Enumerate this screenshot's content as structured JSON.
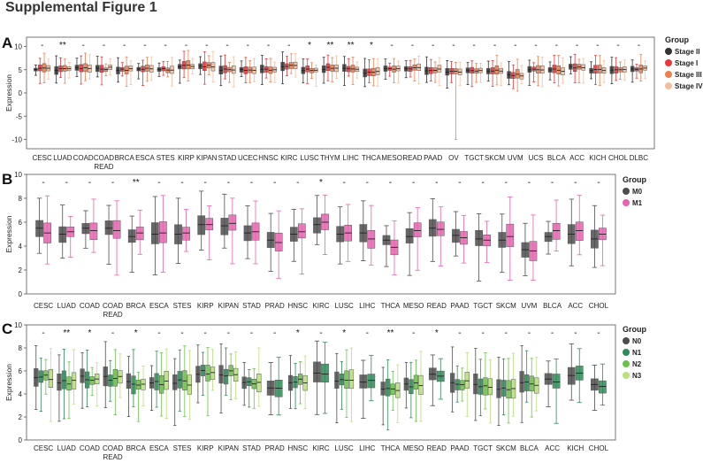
{
  "figure_title": "Supplemental Figure 1",
  "chart_data": [
    {
      "panel": "A",
      "type": "box",
      "ylabel": "Expression",
      "ylim": [
        -12,
        12
      ],
      "yticks": [
        -10,
        -5,
        0,
        5,
        10
      ],
      "legend_title": "Group",
      "legend_placement": "right",
      "series": [
        {
          "name": "Stage II",
          "color": "#333333"
        },
        {
          "name": "Stage I",
          "color": "#e8363b"
        },
        {
          "name": "Stage III",
          "color": "#f07f4d"
        },
        {
          "name": "Stage IV",
          "color": "#f5bf9c"
        }
      ],
      "categories": [
        "CESC",
        "LUAD",
        "COAD",
        "COAD READ",
        "BRCA",
        "ESCA",
        "STES",
        "KIRP",
        "KIPAN",
        "STAD",
        "UCEC",
        "HNSC",
        "KIRC",
        "LUSC",
        "THYM",
        "LIHC",
        "THCA",
        "MESO",
        "READ",
        "PAAD",
        "OV",
        "TGCT",
        "SKCM",
        "UVM",
        "UCS",
        "BLCA",
        "ACC",
        "KICH",
        "CHOL",
        "DLBC"
      ],
      "significance": [
        "",
        "**",
        "",
        "",
        "",
        "",
        "",
        "",
        "",
        "",
        "",
        "",
        "",
        "*",
        "**",
        "**",
        "*",
        "",
        "",
        "",
        "",
        "",
        "",
        "",
        "",
        "",
        "",
        "",
        "",
        ""
      ],
      "median": [
        5.3,
        5.0,
        5.3,
        5.3,
        5.0,
        5.1,
        5.1,
        5.8,
        5.8,
        5.1,
        5.1,
        5.0,
        5.8,
        5.0,
        5.3,
        5.1,
        4.5,
        5.0,
        5.3,
        5.0,
        4.5,
        4.6,
        4.7,
        3.9,
        5.0,
        4.9,
        5.6,
        5.0,
        5.0,
        5.2
      ]
    },
    {
      "panel": "B",
      "type": "box",
      "ylabel": "Expression",
      "ylim": [
        0,
        10
      ],
      "yticks": [
        0,
        2,
        4,
        6,
        8,
        10
      ],
      "legend_title": "Group",
      "legend_placement": "right",
      "series": [
        {
          "name": "M0",
          "color": "#4d4d4d"
        },
        {
          "name": "M1",
          "color": "#e763b0"
        }
      ],
      "categories": [
        "CESC",
        "LUAD",
        "COAD",
        "COAD READ",
        "BRCA",
        "ESCA",
        "STES",
        "KIRP",
        "KIPAN",
        "STAD",
        "PRAD",
        "HNSC",
        "KIRC",
        "LUSC",
        "LIHC",
        "THCA",
        "MESO",
        "READ",
        "PAAD",
        "TGCT",
        "SKCM",
        "UVM",
        "BLCA",
        "ACC",
        "CHOL"
      ],
      "significance": [
        "",
        "",
        "",
        "",
        "**",
        "",
        "",
        "",
        "",
        "",
        "",
        "",
        "*",
        "",
        "",
        "",
        "",
        "",
        "",
        "",
        "",
        "",
        "",
        "",
        ""
      ],
      "values": {
        "M0": [
          5.5,
          5.0,
          5.5,
          5.5,
          4.8,
          5.0,
          5.0,
          5.8,
          5.7,
          5.1,
          4.5,
          5.0,
          5.8,
          5.0,
          5.1,
          4.5,
          4.8,
          5.5,
          4.9,
          4.6,
          4.5,
          3.7,
          4.8,
          5.0,
          4.6
        ],
        "M1": [
          5.1,
          5.2,
          5.3,
          5.3,
          5.1,
          5.1,
          5.1,
          5.8,
          5.9,
          5.2,
          4.3,
          5.2,
          6.0,
          5.1,
          4.6,
          3.9,
          5.3,
          5.4,
          4.7,
          4.5,
          4.8,
          3.6,
          5.3,
          5.3,
          5.0
        ]
      }
    },
    {
      "panel": "C",
      "type": "box",
      "ylabel": "Expression",
      "ylim": [
        0,
        10
      ],
      "yticks": [
        0,
        2,
        4,
        6,
        8,
        10
      ],
      "legend_title": "Group",
      "legend_placement": "right",
      "series": [
        {
          "name": "N0",
          "color": "#4d4d4d"
        },
        {
          "name": "N1",
          "color": "#2e8b57"
        },
        {
          "name": "N2",
          "color": "#6cc24a"
        },
        {
          "name": "N3",
          "color": "#b9e07a"
        }
      ],
      "categories": [
        "CESC",
        "LUAD",
        "COAD",
        "COAD READ",
        "BRCA",
        "ESCA",
        "STES",
        "KIRP",
        "KIPAN",
        "STAD",
        "PRAD",
        "HNSC",
        "KIRC",
        "LUSC",
        "LIHC",
        "THCA",
        "MESO",
        "READ",
        "PAAD",
        "TGCT",
        "SKCM",
        "BLCA",
        "ACC",
        "KICH",
        "CHOL"
      ],
      "significance": [
        "",
        "**",
        "*",
        "",
        "*",
        "",
        "",
        "",
        "",
        "",
        "",
        "*",
        "",
        "*",
        "",
        "**",
        "",
        "*",
        "",
        "",
        "",
        "",
        "",
        "",
        ""
      ],
      "groups_per_category": [
        4,
        4,
        4,
        4,
        4,
        4,
        4,
        4,
        4,
        4,
        2,
        4,
        2,
        4,
        2,
        4,
        4,
        2,
        4,
        4,
        4,
        4,
        2,
        2,
        2
      ],
      "median": [
        5.4,
        5.0,
        5.3,
        5.4,
        4.9,
        5.0,
        5.0,
        5.8,
        5.8,
        5.0,
        4.5,
        5.1,
        5.8,
        5.0,
        5.2,
        4.5,
        4.8,
        5.5,
        4.9,
        4.6,
        4.5,
        4.9,
        5.1,
        5.8,
        4.6
      ]
    }
  ]
}
